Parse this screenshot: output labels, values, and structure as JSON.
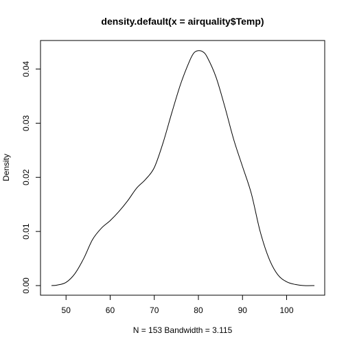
{
  "chart_data": {
    "type": "line",
    "title": "density.default(x = airquality$Temp)",
    "xlabel": "N = 153   Bandwidth = 3.115",
    "ylabel": "Density",
    "xlim": [
      46.7,
      106.3
    ],
    "ylim": [
      0,
      0.0435
    ],
    "grid": false,
    "legend": "none",
    "x_ticks": [
      50,
      60,
      70,
      80,
      90,
      100
    ],
    "y_ticks": [
      0.0,
      0.01,
      0.02,
      0.03,
      0.04
    ],
    "x_tick_labels": [
      "50",
      "60",
      "70",
      "80",
      "90",
      "100"
    ],
    "y_tick_labels": [
      "0.00",
      "0.01",
      "0.02",
      "0.03",
      "0.04"
    ],
    "series": [
      {
        "x": [
          46.7,
          48,
          50,
          52,
          54,
          56,
          58,
          60,
          62,
          64,
          66,
          68,
          70,
          72,
          74,
          76,
          78,
          79,
          80,
          81,
          82,
          84,
          86,
          88,
          90,
          92,
          94,
          96,
          98,
          100,
          102,
          104,
          106.3
        ],
        "y": [
          0.0,
          0.0001,
          0.0006,
          0.0022,
          0.005,
          0.0085,
          0.0106,
          0.012,
          0.0137,
          0.0157,
          0.018,
          0.0196,
          0.0218,
          0.0264,
          0.032,
          0.0373,
          0.0415,
          0.043,
          0.0434,
          0.0432,
          0.0422,
          0.0385,
          0.033,
          0.027,
          0.022,
          0.017,
          0.01,
          0.005,
          0.002,
          0.0007,
          0.0002,
          0.0,
          0.0
        ]
      }
    ],
    "color": "#000000"
  }
}
